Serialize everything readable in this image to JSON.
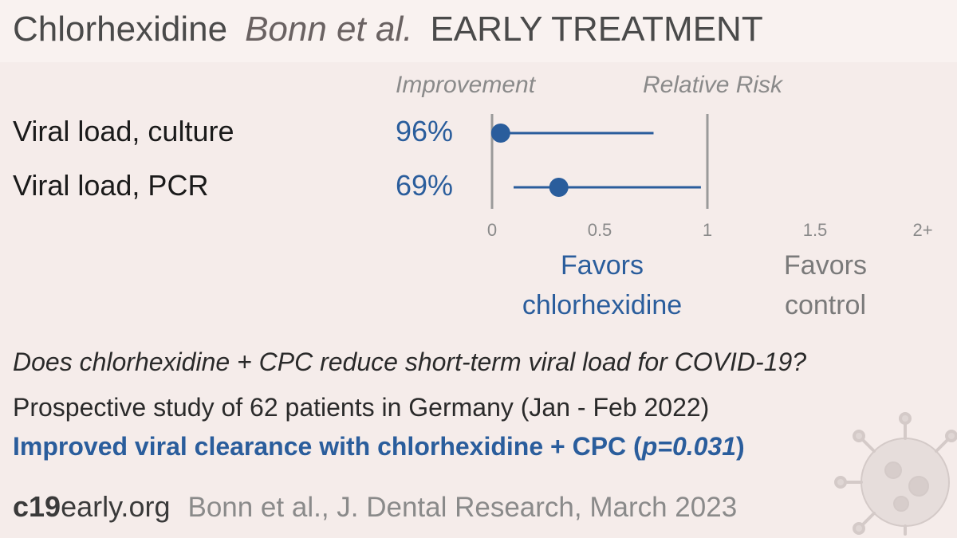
{
  "header": {
    "drug": "Chlorhexidine",
    "author": "Bonn et al.",
    "stage": "EARLY TREATMENT"
  },
  "columns": {
    "improvement": "Improvement",
    "relative_risk": "Relative Risk"
  },
  "chart_data": {
    "type": "forest",
    "title": "",
    "xlabel": "Relative Risk",
    "xlim": [
      0,
      2
    ],
    "x_ticks": [
      "0",
      "0.5",
      "1",
      "1.5",
      "2+"
    ],
    "reference_line": 1,
    "rows": [
      {
        "label": "Viral load, culture",
        "improvement": "96%",
        "rr": 0.04,
        "ci": [
          0.01,
          0.75
        ]
      },
      {
        "label": "Viral load, PCR",
        "improvement": "69%",
        "rr": 0.31,
        "ci": [
          0.1,
          0.97
        ]
      }
    ],
    "favors_left": [
      "Favors",
      "chlorhexidine"
    ],
    "favors_right": [
      "Favors",
      "control"
    ],
    "colors": {
      "point": "#2a5d9c",
      "axis": "#9a9a9a"
    }
  },
  "summary": {
    "question": "Does chlorhexidine + CPC reduce short-term viral load for COVID-19?",
    "study": "Prospective study of 62 patients in Germany (Jan - Feb 2022)",
    "result_main": "Improved viral clearance with chlorhexidine + CPC (",
    "result_p": "p=0.031",
    "result_end": ")"
  },
  "footer": {
    "site_bold": "c19",
    "site_rest": "early.org",
    "citation": "Bonn et al., J. Dental Research, March 2023"
  },
  "icons": {
    "virus": "virus-icon"
  }
}
